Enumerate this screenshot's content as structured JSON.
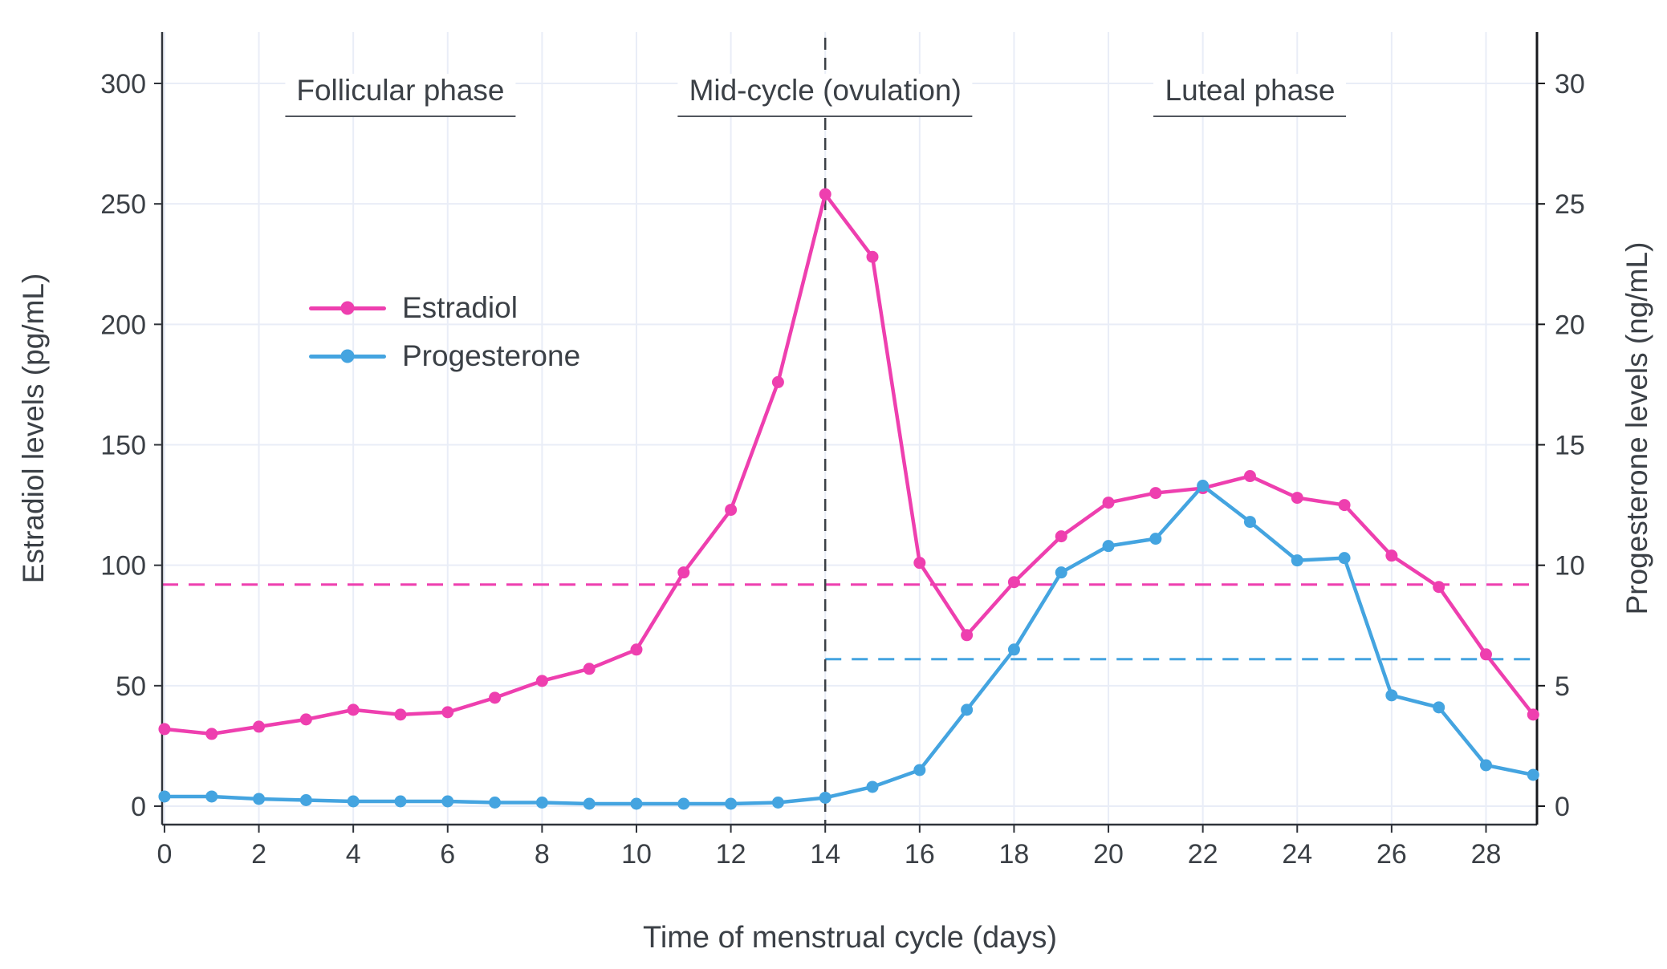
{
  "chart_data": {
    "type": "line",
    "title": "",
    "xlabel": "Time of menstrual cycle (days)",
    "ylabel_left": "Estradiol levels (pg/mL)",
    "ylabel_right": "Progesterone levels (ng/mL)",
    "xlim": [
      -0.05,
      29.08
    ],
    "ylim_left": [
      0,
      300
    ],
    "ylim_right": [
      0,
      30
    ],
    "x_ticks": [
      0,
      2,
      4,
      6,
      8,
      10,
      12,
      14,
      16,
      18,
      20,
      22,
      24,
      26,
      28
    ],
    "y_ticks_left": [
      0,
      50,
      100,
      150,
      200,
      250,
      300
    ],
    "y_ticks_right": [
      0,
      5,
      10,
      15,
      20,
      25,
      30
    ],
    "grid": true,
    "legend_position": "inside-upper-left",
    "x": [
      0,
      1,
      2,
      3,
      4,
      5,
      6,
      7,
      8,
      9,
      10,
      11,
      12,
      13,
      14,
      15,
      16,
      17,
      18,
      19,
      20,
      21,
      22,
      23,
      24,
      25,
      26,
      27,
      28,
      29
    ],
    "series": [
      {
        "name": "Estradiol",
        "axis": "left",
        "color": "#EE3FAF",
        "values": [
          32,
          30,
          33,
          36,
          40,
          38,
          39,
          45,
          52,
          57,
          65,
          97,
          123,
          176,
          254,
          228,
          101,
          71,
          93,
          112,
          126,
          130,
          132,
          137,
          128,
          125,
          104,
          91,
          63,
          38
        ]
      },
      {
        "name": "Progesterone",
        "axis": "right",
        "color": "#44A4E0",
        "values": [
          0.4,
          0.4,
          0.3,
          0.25,
          0.2,
          0.2,
          0.2,
          0.15,
          0.15,
          0.1,
          0.1,
          0.1,
          0.1,
          0.15,
          0.35,
          0.8,
          1.5,
          4.0,
          6.5,
          9.7,
          10.8,
          11.1,
          13.3,
          11.8,
          10.2,
          10.3,
          4.6,
          4.1,
          1.7,
          1.3
        ]
      }
    ],
    "phases": [
      {
        "label": "Follicular phase",
        "x_center": 5
      },
      {
        "label": "Mid-cycle (ovulation)",
        "x_center": 14
      },
      {
        "label": "Luteal phase",
        "x_center": 23
      }
    ],
    "reference_lines": [
      {
        "name": "estradiol-threshold-dashed",
        "axis": "left",
        "value": 92,
        "x_start": -0.05,
        "x_end": 29.08,
        "color": "#EE3FAF"
      },
      {
        "name": "progesterone-threshold-dashed",
        "axis": "right",
        "value": 6.1,
        "x_start": 14,
        "x_end": 29.08,
        "color": "#44A4E0"
      }
    ],
    "ovulation_line": {
      "x": 14,
      "color": "#3b4046"
    },
    "colors": {
      "grid": "#E9EDF7",
      "spine": "#2f333a",
      "right_spine": "#17191d",
      "text": "#3b4046"
    }
  }
}
